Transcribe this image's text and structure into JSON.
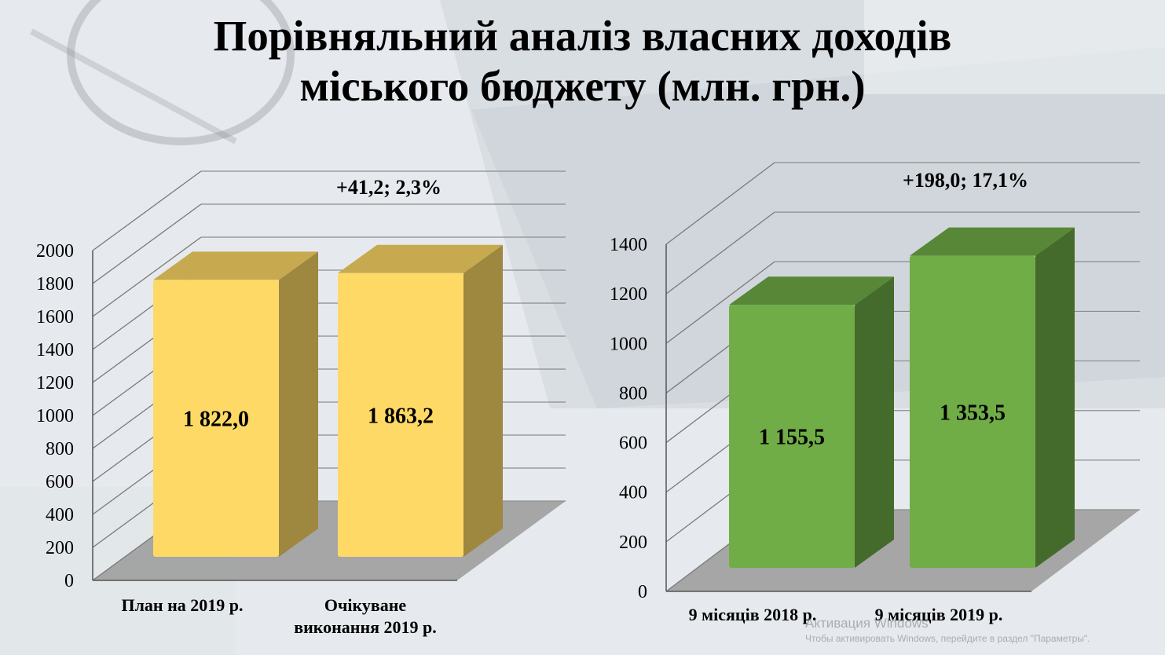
{
  "title": {
    "line1": "Порівняльний аналіз власних доходів",
    "line2": "міського бюджету (млн. грн.)"
  },
  "chart_data": [
    {
      "type": "bar",
      "categories": [
        "План на 2019 р.",
        "Очікуване виконання 2019 р."
      ],
      "values": [
        1822.0,
        1863.2
      ],
      "value_labels": [
        "1 822,0",
        "1 863,2"
      ],
      "annotation": "+41,2; 2,3%",
      "ylim": [
        0,
        2000
      ],
      "yticks": [
        0,
        200,
        400,
        600,
        800,
        1000,
        1200,
        1400,
        1600,
        1800,
        2000
      ],
      "color": "#ffd966",
      "grid": true
    },
    {
      "type": "bar",
      "categories": [
        "9 місяців 2018 р.",
        "9 місяців 2019 р."
      ],
      "values": [
        1155.5,
        1353.5
      ],
      "value_labels": [
        "1 155,5",
        "1 353,5"
      ],
      "annotation": "+198,0; 17,1%",
      "ylim": [
        0,
        1400
      ],
      "yticks": [
        0,
        200,
        400,
        600,
        800,
        1000,
        1200,
        1400
      ],
      "color": "#70ad47",
      "grid": true
    }
  ],
  "watermark": {
    "line1": "Активация Windows",
    "line2": "Чтобы активировать Windows, перейдите в раздел \"Параметры\"."
  }
}
